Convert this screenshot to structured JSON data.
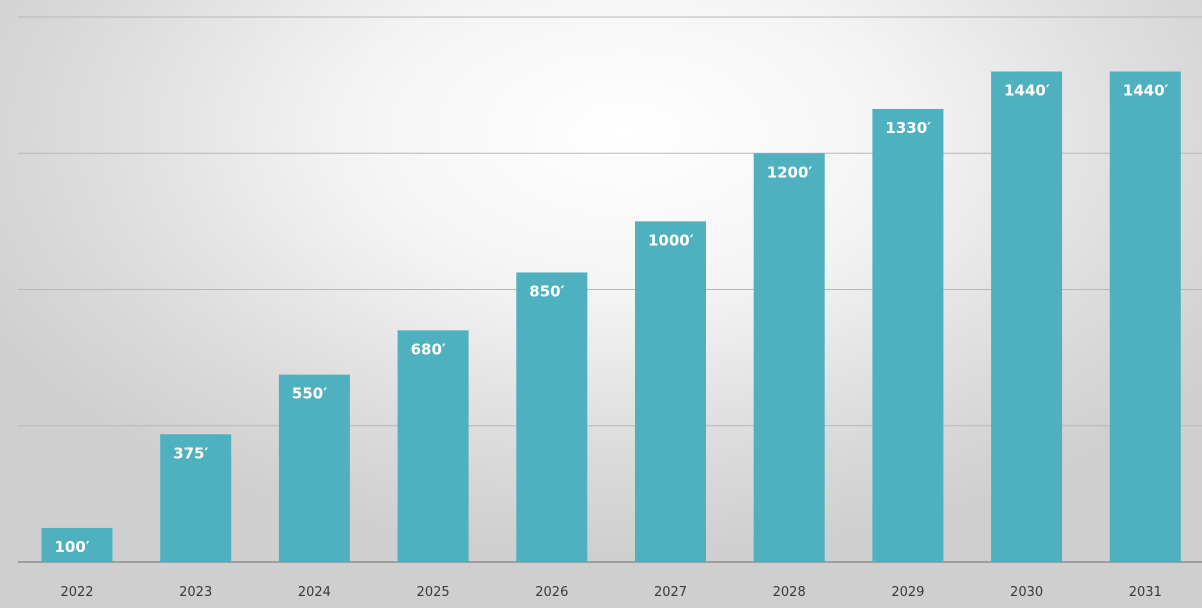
{
  "chart_data": {
    "type": "bar",
    "title": "",
    "xlabel": "",
    "ylabel": "",
    "categories": [
      "2022",
      "2023",
      "2024",
      "2025",
      "2026",
      "2027",
      "2028",
      "2029",
      "2030",
      "2031"
    ],
    "values": [
      100,
      375,
      550,
      680,
      850,
      1000,
      1200,
      1330,
      1440,
      1440
    ],
    "value_labels": [
      "100′",
      "375′",
      "550′",
      "680′",
      "850′",
      "1000′",
      "1200′",
      "1330′",
      "1440′",
      "1440′"
    ],
    "ylim": [
      0,
      1600
    ],
    "gridlines": [
      400,
      800,
      1200,
      1600
    ],
    "y_tick_labels_shown": false,
    "grid": true,
    "legend": "none",
    "bar_color": "#4fb0bf"
  }
}
